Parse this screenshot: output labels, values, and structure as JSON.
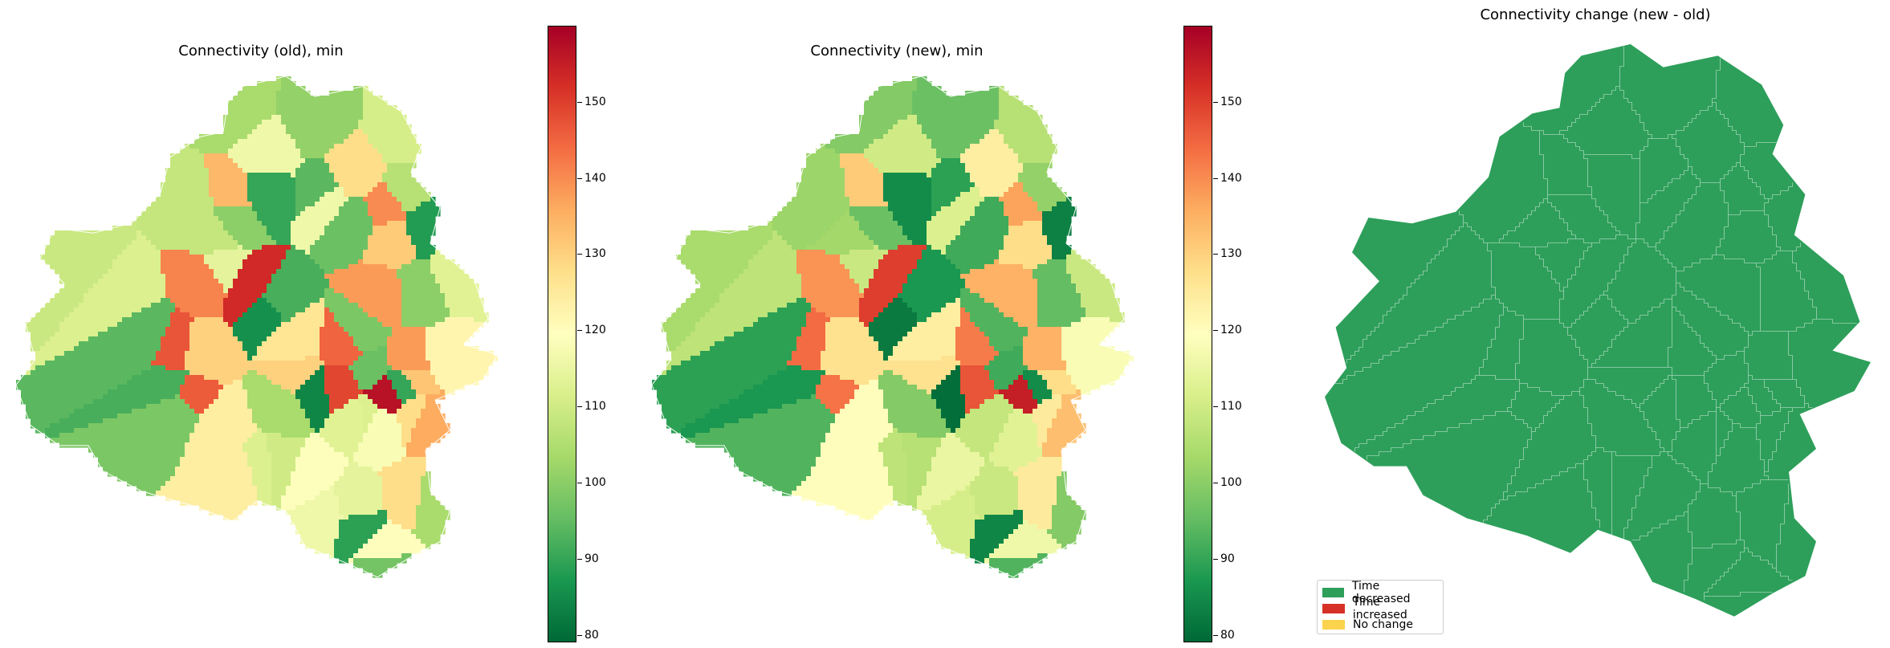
{
  "panels": [
    {
      "title": "Connectivity (old), min",
      "colorbar": {
        "min": 79,
        "max": 160,
        "ticks": [
          "80",
          "90",
          "100",
          "110",
          "120",
          "130",
          "140",
          "150"
        ],
        "colormap": "RdYlGn_r"
      },
      "region_values": [
        126,
        118,
        116,
        113,
        108,
        104,
        100,
        97,
        111,
        98,
        112,
        94,
        104,
        114,
        106,
        100,
        88,
        92,
        96,
        90,
        101,
        112,
        109,
        114,
        146,
        138,
        145,
        157,
        153,
        147,
        132,
        130,
        128,
        124,
        116,
        104,
        98,
        92,
        84,
        86,
        90,
        94,
        96,
        89,
        110,
        116,
        120,
        134,
        140,
        128,
        131,
        130,
        124,
        112,
        108,
        119,
        113,
        122,
        128,
        141,
        149,
        136,
        138
      ]
    },
    {
      "title": "Connectivity (new), min",
      "colorbar": {
        "min": 79,
        "max": 160,
        "ticks": [
          "80",
          "90",
          "100",
          "110",
          "120",
          "130",
          "140",
          "150"
        ],
        "colormap": "RdYlGn_r"
      },
      "region_values": [
        124,
        113,
        110,
        108,
        102,
        99,
        96,
        93,
        106,
        93,
        107,
        89,
        99,
        109,
        101,
        95,
        83,
        87,
        91,
        85,
        96,
        107,
        104,
        109,
        143,
        135,
        142,
        155,
        150,
        144,
        128,
        127,
        125,
        120,
        111,
        99,
        93,
        87,
        80,
        82,
        85,
        89,
        91,
        84,
        106,
        112,
        116,
        131,
        137,
        124,
        128,
        127,
        120,
        108,
        103,
        115,
        109,
        118,
        125,
        139,
        147,
        133,
        135
      ]
    },
    {
      "title": "Connectivity change (new - old)",
      "fill_color": "#2d9f5a",
      "legend": [
        {
          "label": "Time decreased",
          "color": "#2d9f5a"
        },
        {
          "label": "Time increased",
          "color": "#d73027"
        },
        {
          "label": "No change",
          "color": "#fcd34d"
        }
      ]
    }
  ]
}
